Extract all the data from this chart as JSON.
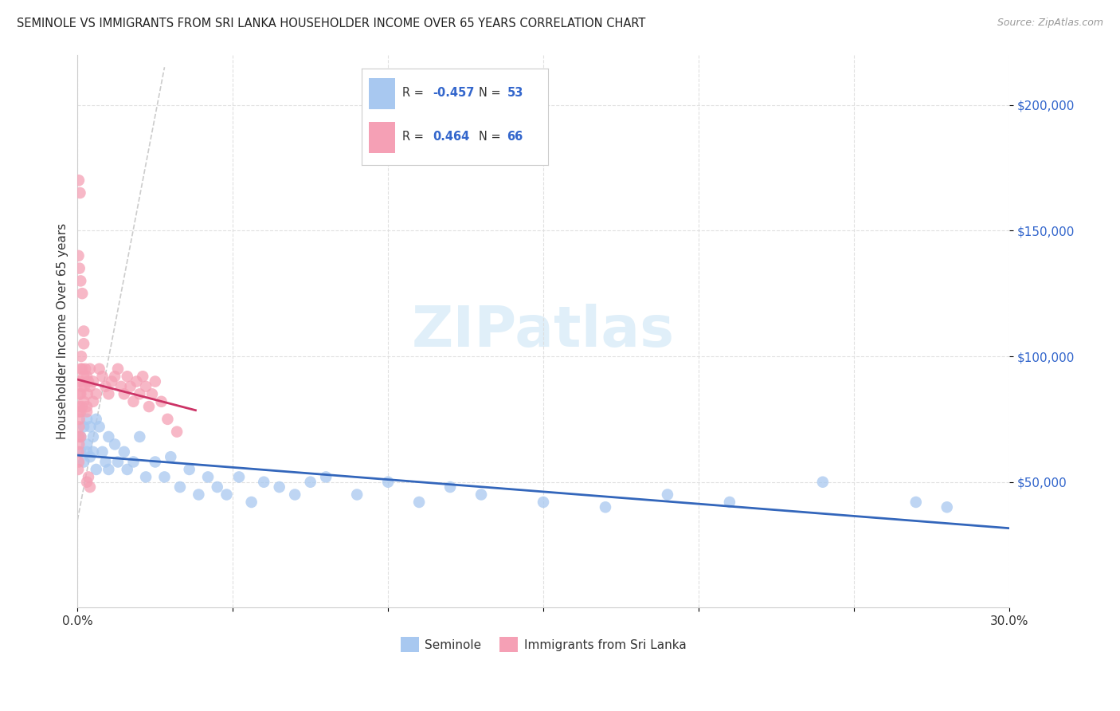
{
  "title": "SEMINOLE VS IMMIGRANTS FROM SRI LANKA HOUSEHOLDER INCOME OVER 65 YEARS CORRELATION CHART",
  "source": "Source: ZipAtlas.com",
  "ylabel": "Householder Income Over 65 years",
  "xlim": [
    0.0,
    0.3
  ],
  "ylim": [
    0,
    220000
  ],
  "yticks": [
    50000,
    100000,
    150000,
    200000
  ],
  "ytick_labels": [
    "$50,000",
    "$100,000",
    "$150,000",
    "$200,000"
  ],
  "watermark": "ZIPatlas",
  "seminole_r": "-0.457",
  "seminole_n": "53",
  "srilanka_r": "0.464",
  "srilanka_n": "66",
  "seminole_color": "#a8c8f0",
  "seminole_line_color": "#3366bb",
  "srilanka_color": "#f5a0b5",
  "srilanka_line_color": "#cc3366",
  "diagonal_color": "#cccccc",
  "background_color": "#ffffff",
  "sem_x": [
    0.001,
    0.001,
    0.002,
    0.002,
    0.003,
    0.003,
    0.004,
    0.004,
    0.005,
    0.005,
    0.006,
    0.006,
    0.007,
    0.008,
    0.009,
    0.01,
    0.01,
    0.012,
    0.013,
    0.015,
    0.016,
    0.018,
    0.02,
    0.022,
    0.025,
    0.028,
    0.03,
    0.033,
    0.036,
    0.039,
    0.042,
    0.045,
    0.048,
    0.052,
    0.056,
    0.06,
    0.065,
    0.07,
    0.075,
    0.08,
    0.09,
    0.1,
    0.11,
    0.12,
    0.13,
    0.15,
    0.17,
    0.19,
    0.21,
    0.24,
    0.27,
    0.28,
    0.003
  ],
  "sem_y": [
    68000,
    62000,
    72000,
    58000,
    65000,
    75000,
    72000,
    60000,
    62000,
    68000,
    75000,
    55000,
    72000,
    62000,
    58000,
    68000,
    55000,
    65000,
    58000,
    62000,
    55000,
    58000,
    68000,
    52000,
    58000,
    52000,
    60000,
    48000,
    55000,
    45000,
    52000,
    48000,
    45000,
    52000,
    42000,
    50000,
    48000,
    45000,
    50000,
    52000,
    45000,
    50000,
    42000,
    48000,
    45000,
    42000,
    40000,
    45000,
    42000,
    50000,
    42000,
    40000,
    62000
  ],
  "slk_x": [
    0.0002,
    0.0003,
    0.0004,
    0.0004,
    0.0005,
    0.0005,
    0.0005,
    0.0006,
    0.0007,
    0.0007,
    0.0008,
    0.001,
    0.001,
    0.001,
    0.001,
    0.0012,
    0.0013,
    0.0015,
    0.0015,
    0.002,
    0.002,
    0.002,
    0.0022,
    0.0025,
    0.003,
    0.003,
    0.003,
    0.0032,
    0.0035,
    0.004,
    0.004,
    0.005,
    0.005,
    0.006,
    0.007,
    0.008,
    0.009,
    0.01,
    0.011,
    0.012,
    0.013,
    0.014,
    0.015,
    0.016,
    0.017,
    0.018,
    0.019,
    0.02,
    0.021,
    0.022,
    0.023,
    0.024,
    0.025,
    0.027,
    0.029,
    0.032,
    0.0003,
    0.0004,
    0.0006,
    0.0008,
    0.001,
    0.0015,
    0.002,
    0.003,
    0.0035,
    0.004
  ],
  "slk_y": [
    55000,
    62000,
    68000,
    58000,
    72000,
    65000,
    78000,
    75000,
    80000,
    85000,
    90000,
    95000,
    85000,
    78000,
    68000,
    100000,
    88000,
    95000,
    80000,
    105000,
    92000,
    82000,
    88000,
    95000,
    80000,
    92000,
    78000,
    85000,
    90000,
    95000,
    88000,
    82000,
    90000,
    85000,
    95000,
    92000,
    88000,
    85000,
    90000,
    92000,
    95000,
    88000,
    85000,
    92000,
    88000,
    82000,
    90000,
    85000,
    92000,
    88000,
    80000,
    85000,
    90000,
    82000,
    75000,
    70000,
    140000,
    170000,
    135000,
    165000,
    130000,
    125000,
    110000,
    50000,
    52000,
    48000
  ]
}
